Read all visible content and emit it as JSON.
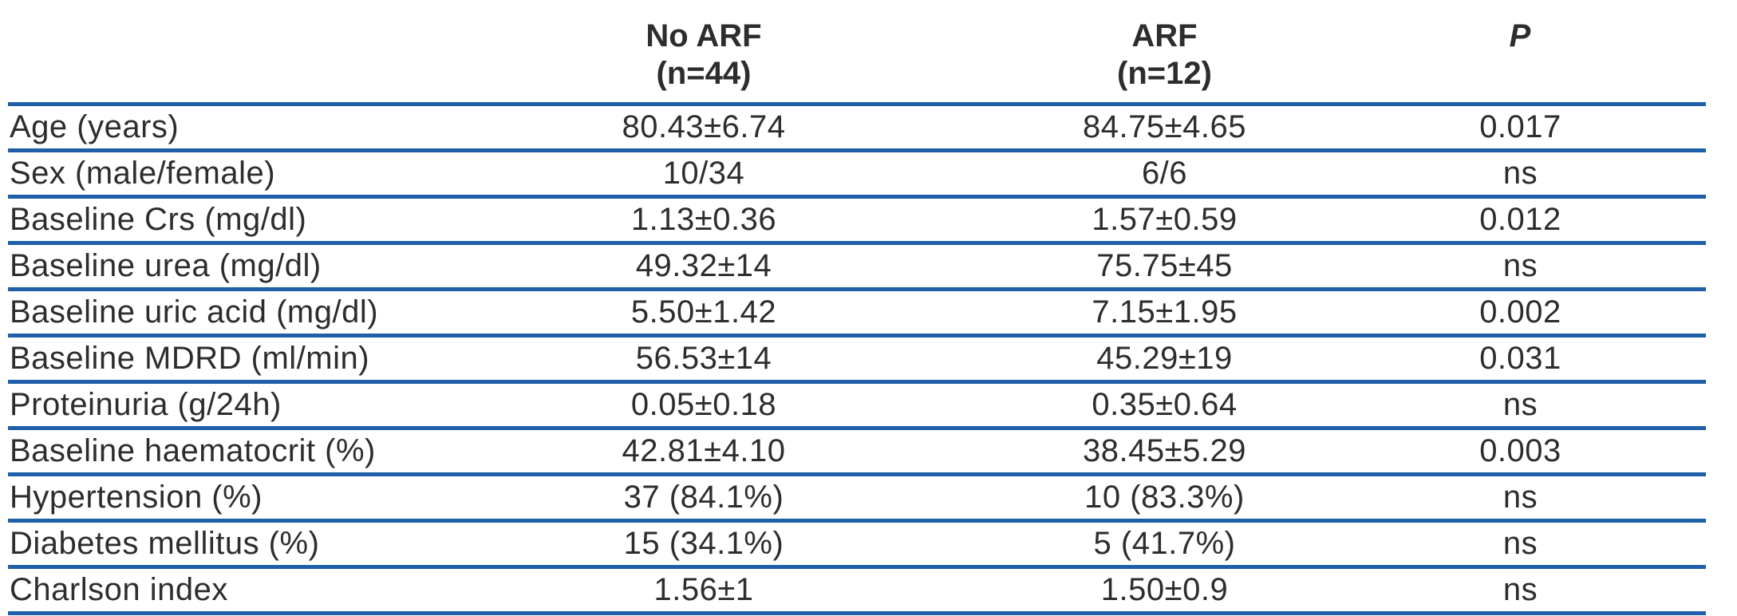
{
  "table": {
    "columns": {
      "label_header": "",
      "group1_label": "No ARF",
      "group1_sub": "(n=44)",
      "group2_label": "ARF",
      "group2_sub": "(n=12)",
      "p_label": "P"
    },
    "rows": [
      {
        "label": "Age (years)",
        "no_arf": "80.43±6.74",
        "arf": "84.75±4.65",
        "p": "0.017"
      },
      {
        "label": "Sex (male/female)",
        "no_arf": "10/34",
        "arf": "6/6",
        "p": "ns"
      },
      {
        "label": "Baseline Crs (mg/dl)",
        "no_arf": "1.13±0.36",
        "arf": "1.57±0.59",
        "p": "0.012"
      },
      {
        "label": "Baseline urea (mg/dl)",
        "no_arf": "49.32±14",
        "arf": "75.75±45",
        "p": "ns"
      },
      {
        "label": "Baseline uric acid (mg/dl)",
        "no_arf": "5.50±1.42",
        "arf": "7.15±1.95",
        "p": "0.002"
      },
      {
        "label": "Baseline MDRD (ml/min)",
        "no_arf": "56.53±14",
        "arf": "45.29±19",
        "p": "0.031"
      },
      {
        "label": "Proteinuria (g/24h)",
        "no_arf": "0.05±0.18",
        "arf": "0.35±0.64",
        "p": "ns"
      },
      {
        "label": "Baseline haematocrit (%)",
        "no_arf": "42.81±4.10",
        "arf": "38.45±5.29",
        "p": "0.003"
      },
      {
        "label": "Hypertension (%)",
        "no_arf": "37 (84.1%)",
        "arf": "10 (83.3%)",
        "p": "ns"
      },
      {
        "label": "Diabetes mellitus (%)",
        "no_arf": "15 (34.1%)",
        "arf": "5 (41.7%)",
        "p": "ns"
      },
      {
        "label": "Charlson index",
        "no_arf": "1.56±1",
        "arf": "1.50±0.9",
        "p": "ns"
      }
    ],
    "colors": {
      "rule_blue": "#1f5fa8",
      "text": "#2d2d2d",
      "background": "#ffffff"
    }
  }
}
